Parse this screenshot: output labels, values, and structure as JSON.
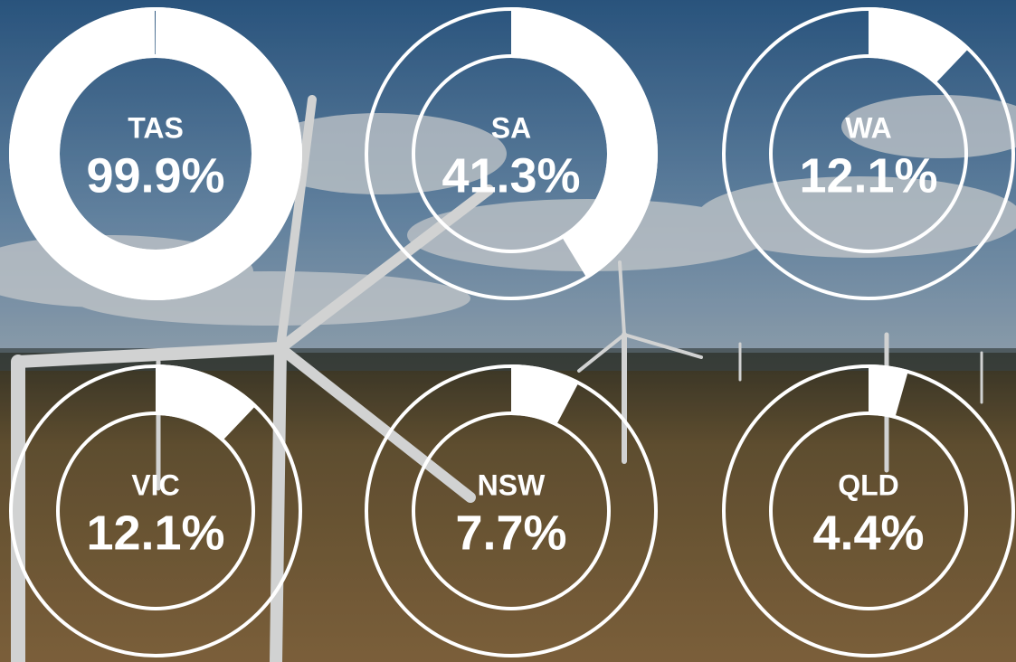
{
  "chart_data": {
    "type": "donut",
    "categories": [
      "TAS",
      "SA",
      "WA",
      "VIC",
      "NSW",
      "QLD"
    ],
    "values": [
      99.9,
      41.3,
      12.1,
      12.1,
      7.7,
      4.4
    ],
    "value_labels": [
      "99.9%",
      "41.3%",
      "12.1%",
      "12.1%",
      "7.7%",
      "4.4%"
    ],
    "color": "#ffffff"
  }
}
